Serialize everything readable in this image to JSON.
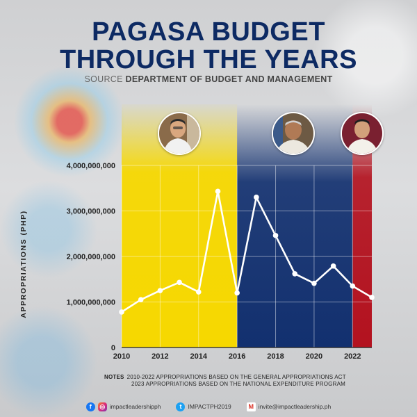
{
  "title_line1": "PAGASA BUDGET",
  "title_line2": "THROUGH THE YEARS",
  "source_prefix": "SOURCE",
  "source_name": "DEPARTMENT OF BUDGET AND MANAGEMENT",
  "notes_label": "NOTES",
  "notes_line1": "2010-2022 APPROPRIATIONS BASED ON THE GENERAL APPROPRIATIONS ACT",
  "notes_line2": "2023 APPROPRIATIONS BASED ON THE NATIONAL EXPENDITURE PROGRAM",
  "footer": {
    "facebook": "impactleadershipph",
    "twitter": "IMPACTPH2019",
    "email": "invite@impactleadership.ph"
  },
  "colors": {
    "title": "#0d2a63",
    "yellow": "#f6d800",
    "blue": "#12306f",
    "red": "#b3121f",
    "line": "#ffffff"
  },
  "chart_data": {
    "type": "line",
    "title": "PAGASA BUDGET THROUGH THE YEARS",
    "xlabel": "",
    "ylabel": "APPROPRIATIONS (PHP)",
    "x": [
      2010,
      2011,
      2012,
      2013,
      2014,
      2015,
      2016,
      2017,
      2018,
      2019,
      2020,
      2021,
      2022,
      2023
    ],
    "series": [
      {
        "values": [
          780000000,
          1050000000,
          1250000000,
          1430000000,
          1220000000,
          3430000000,
          1200000000,
          3300000000,
          2460000000,
          1620000000,
          1410000000,
          1790000000,
          1350000000,
          1100000000
        ]
      }
    ],
    "xticks": [
      "2010",
      "2012",
      "2014",
      "2016",
      "2018",
      "2020",
      "2022"
    ],
    "yticks": [
      "0",
      "1,000,000,000",
      "2,000,000,000",
      "3,000,000,000",
      "4,000,000,000"
    ],
    "ylim": [
      0,
      4000000000
    ],
    "xlim": [
      2010,
      2023
    ],
    "grid": true,
    "periods": [
      {
        "from": 2010,
        "to": 2016,
        "color": "#f6d800"
      },
      {
        "from": 2016,
        "to": 2022,
        "color": "#12306f"
      },
      {
        "from": 2022,
        "to": 2023,
        "color": "#b3121f"
      }
    ]
  }
}
